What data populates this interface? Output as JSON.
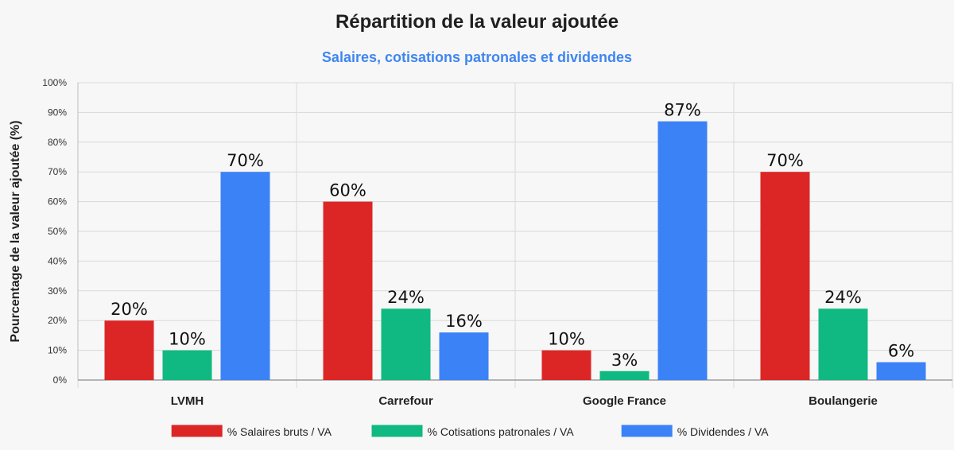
{
  "chart_data": {
    "type": "bar",
    "title": "Répartition de la valeur ajoutée",
    "subtitle": "Salaires, cotisations patronales et dividendes",
    "xlabel": "",
    "ylabel": "Pourcentage de la valeur ajoutée (%)",
    "ylim": [
      0,
      100
    ],
    "yticks": [
      "0%",
      "10%",
      "20%",
      "30%",
      "40%",
      "50%",
      "60%",
      "70%",
      "80%",
      "90%",
      "100%"
    ],
    "grid": true,
    "legend_position": "bottom",
    "categories": [
      "LVMH",
      "Carrefour",
      "Google France",
      "Boulangerie"
    ],
    "series": [
      {
        "name": "% Salaires bruts / VA",
        "color": "#dc2626",
        "values": [
          20,
          60,
          10,
          70
        ],
        "labels": [
          "20%",
          "60%",
          "10%",
          "70%"
        ]
      },
      {
        "name": "% Cotisations patronales / VA",
        "color": "#10b981",
        "values": [
          10,
          24,
          3,
          24
        ],
        "labels": [
          "10%",
          "24%",
          "3%",
          "24%"
        ]
      },
      {
        "name": "% Dividendes / VA",
        "color": "#3b82f6",
        "values": [
          70,
          16,
          87,
          6
        ],
        "labels": [
          "70%",
          "16%",
          "87%",
          "6%"
        ]
      }
    ]
  }
}
